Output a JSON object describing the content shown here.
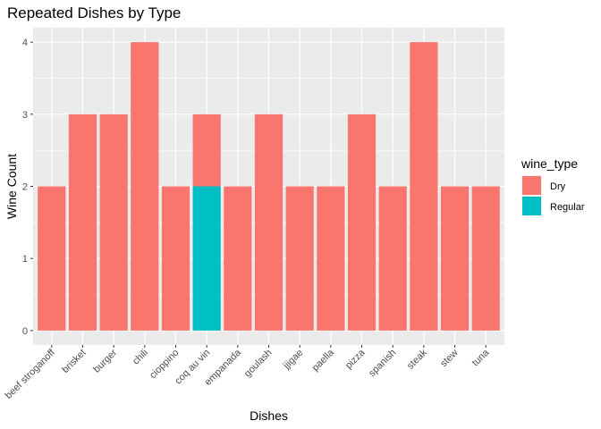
{
  "chart_data": {
    "type": "bar",
    "title": "Repeated Dishes by Type",
    "xlabel": "Dishes",
    "ylabel": "Wine Count",
    "categories": [
      "beef stroganoff",
      "brisket",
      "burger",
      "chili",
      "cioppino",
      "coq au vin",
      "empanada",
      "goulash",
      "jjigae",
      "paella",
      "pizza",
      "spanish",
      "steak",
      "stew",
      "tuna"
    ],
    "stacked": true,
    "series": [
      {
        "name": "Dry",
        "color": "#F8766D",
        "values": [
          2,
          3,
          3,
          4,
          2,
          1,
          2,
          3,
          2,
          2,
          3,
          2,
          4,
          2,
          2
        ]
      },
      {
        "name": "Regular",
        "color": "#00BFC4",
        "values": [
          0,
          0,
          0,
          0,
          0,
          2,
          0,
          0,
          0,
          0,
          0,
          0,
          0,
          0,
          0
        ]
      }
    ],
    "ylim": [
      -0.2,
      4.2
    ],
    "y_ticks": [
      0,
      1,
      2,
      3,
      4
    ],
    "grid": true,
    "panel_background": "#EBEBEB",
    "legend": {
      "title": "wine_type",
      "position": "right"
    }
  }
}
